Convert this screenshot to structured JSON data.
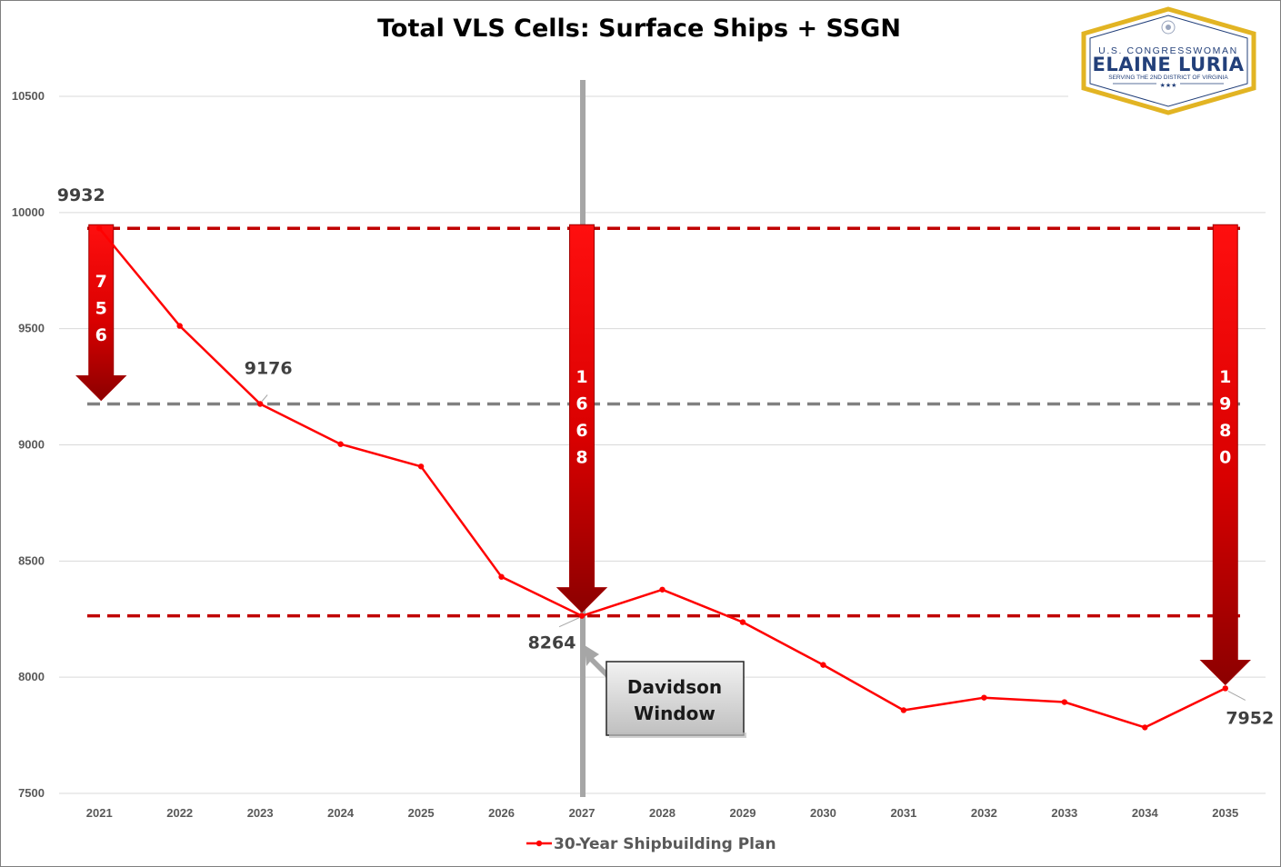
{
  "chart_data": {
    "type": "line",
    "title": "Total VLS Cells:  Surface Ships + SSGN",
    "xlabel": "",
    "ylabel": "",
    "ylim": [
      7500,
      10500
    ],
    "y_ticks": [
      "7500",
      "8000",
      "8500",
      "9000",
      "9500",
      "10000",
      "10500"
    ],
    "categories": [
      "2021",
      "2022",
      "2023",
      "2024",
      "2025",
      "2026",
      "2027",
      "2028",
      "2029",
      "2030",
      "2031",
      "2032",
      "2033",
      "2034",
      "2035"
    ],
    "series": [
      {
        "name": "30-Year Shipbuilding Plan",
        "color": "#ff0000",
        "values": [
          9932,
          9512,
          9176,
          9003,
          8907,
          8432,
          8264,
          8377,
          8237,
          8053,
          7858,
          7912,
          7893,
          7784,
          7952
        ]
      }
    ],
    "grid": true,
    "legend_position": "bottom",
    "annotations": {
      "point_labels": [
        {
          "year": "2021",
          "text": "9932"
        },
        {
          "year": "2023",
          "text": "9176"
        },
        {
          "year": "2027",
          "text": "8264"
        },
        {
          "year": "2035",
          "text": "7952"
        }
      ],
      "reference_lines": [
        {
          "value": 9932,
          "style": "dashed",
          "color": "#c00000"
        },
        {
          "value": 9176,
          "style": "dashed",
          "color": "#808080"
        },
        {
          "value": 8264,
          "style": "dashed",
          "color": "#c00000"
        }
      ],
      "vertical_marker": {
        "year": "2027",
        "color": "#a6a6a6"
      },
      "drop_arrows": [
        {
          "at_year": "2021",
          "from": 9932,
          "to": 9176,
          "digits": [
            "7",
            "5",
            "6"
          ]
        },
        {
          "at_year": "2027",
          "from": 9932,
          "to": 8264,
          "digits": [
            "1",
            "6",
            "6",
            "8"
          ]
        },
        {
          "at_year": "2035",
          "from": 9932,
          "to": 7952,
          "digits": [
            "1",
            "9",
            "8",
            "0"
          ]
        }
      ],
      "callout": {
        "lines": [
          "Davidson",
          "Window"
        ]
      }
    }
  },
  "logo": {
    "line1": "U.S. CONGRESSWOMAN",
    "line2": "ELAINE LURIA",
    "line3": "SERVING THE 2ND DISTRICT OF VIRGINIA",
    "colors": {
      "border": "#e2b423",
      "text": "#23407a"
    }
  }
}
